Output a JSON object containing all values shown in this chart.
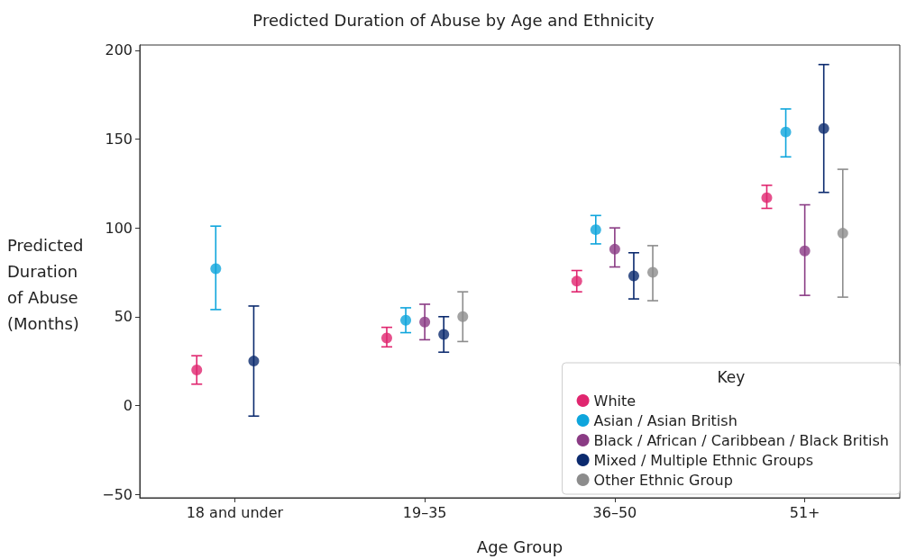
{
  "chart_data": {
    "type": "scatter",
    "title": "Predicted Duration of Abuse by Age and Ethnicity",
    "xlabel": "Age Group",
    "ylabel": "Predicted Duration of Abuse (Months)",
    "legend_title": "Key",
    "categories": [
      "18 and under",
      "19–35",
      "36–50",
      "51+"
    ],
    "ylim": [
      -52,
      203
    ],
    "yticks": [
      -50,
      0,
      50,
      100,
      150,
      200
    ],
    "grid": false,
    "legend": "bottom right",
    "marker": "circle",
    "series": [
      {
        "name": "White",
        "color": "#e0266f",
        "values": [
          20,
          38,
          70,
          117
        ],
        "errors": [
          [
            12,
            28
          ],
          [
            33,
            44
          ],
          [
            64,
            76
          ],
          [
            111,
            124
          ]
        ]
      },
      {
        "name": "Asian / Asian British",
        "color": "#0ea5dc",
        "values": [
          77,
          48,
          99,
          154
        ],
        "errors": [
          [
            54,
            101
          ],
          [
            41,
            55
          ],
          [
            91,
            107
          ],
          [
            140,
            167
          ]
        ]
      },
      {
        "name": "Black / African / Caribbean / Black British",
        "color": "#8a3b84",
        "values": [
          null,
          47,
          88,
          87
        ],
        "errors": [
          null,
          [
            37,
            57
          ],
          [
            78,
            100
          ],
          [
            62,
            113
          ]
        ]
      },
      {
        "name": "Mixed / Multiple Ethnic Groups",
        "color": "#0b2a6e",
        "values": [
          25,
          40,
          73,
          156
        ],
        "errors": [
          [
            -6,
            56
          ],
          [
            30,
            50
          ],
          [
            60,
            86
          ],
          [
            120,
            192
          ]
        ]
      },
      {
        "name": "Other Ethnic Group",
        "color": "#8c8c8c",
        "values": [
          null,
          50,
          75,
          97
        ],
        "errors": [
          null,
          [
            36,
            64
          ],
          [
            59,
            90
          ],
          [
            61,
            133
          ]
        ]
      }
    ]
  }
}
